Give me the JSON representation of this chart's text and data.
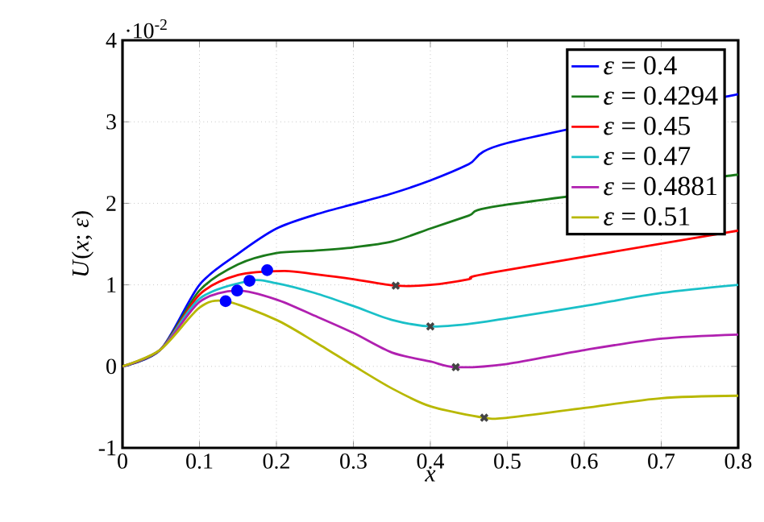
{
  "chart_data": {
    "type": "line",
    "xlabel": "*x*",
    "ylabel": "*U*(*x*; *ε*)",
    "annotations": [
      "·10$^{-2}$"
    ],
    "xlim": [
      0,
      0.8
    ],
    "ylim": [
      -1,
      4
    ],
    "xticks": [
      0,
      0.1,
      0.2,
      0.3,
      0.4,
      0.5,
      0.6,
      0.7,
      0.8
    ],
    "yticks": [
      -1,
      0,
      1,
      2,
      3,
      4
    ],
    "grid": true,
    "legend": "top right",
    "line_style": "solid",
    "marker": "none",
    "series": [
      {
        "name": "*ε* = 0.4",
        "color": "#0000ff",
        "x": [
          0,
          0.05,
          0.1,
          0.15,
          0.2,
          0.25,
          0.3,
          0.35,
          0.4,
          0.45,
          0.5,
          0.79,
          0.8
        ],
        "values": [
          0,
          0.21,
          1.0,
          1.38,
          1.69,
          1.86,
          1.99,
          2.12,
          2.28,
          2.48,
          2.74,
          3.32,
          3.33
        ]
      },
      {
        "name": "*ε* = 0.4294",
        "color": "#1a7a1a",
        "x": [
          0,
          0.05,
          0.1,
          0.15,
          0.2,
          0.25,
          0.3,
          0.35,
          0.4,
          0.45,
          0.49,
          0.79,
          0.8
        ],
        "values": [
          0,
          0.21,
          0.93,
          1.25,
          1.39,
          1.42,
          1.46,
          1.53,
          1.69,
          1.85,
          1.97,
          2.34,
          2.35
        ]
      },
      {
        "name": "*ε* = 0.45",
        "color": "#ff0000",
        "x": [
          0,
          0.05,
          0.1,
          0.15,
          0.21,
          0.25,
          0.3,
          0.355,
          0.4,
          0.45,
          0.48,
          0.79,
          0.8
        ],
        "values": [
          0,
          0.21,
          0.88,
          1.12,
          1.17,
          1.13,
          1.07,
          0.99,
          1.0,
          1.07,
          1.15,
          1.65,
          1.66
        ]
      },
      {
        "name": "*ε* = 0.47",
        "color": "#1ac0c8",
        "x": [
          0,
          0.05,
          0.1,
          0.165,
          0.2,
          0.25,
          0.3,
          0.35,
          0.4,
          0.45,
          0.5,
          0.6,
          0.7,
          0.8
        ],
        "values": [
          0,
          0.21,
          0.83,
          1.05,
          1.02,
          0.9,
          0.74,
          0.57,
          0.49,
          0.52,
          0.59,
          0.74,
          0.9,
          1.0
        ]
      },
      {
        "name": "*ε* = 0.4881",
        "color": "#b020b0",
        "x": [
          0,
          0.05,
          0.1,
          0.149,
          0.2,
          0.25,
          0.3,
          0.35,
          0.4,
          0.433,
          0.5,
          0.6,
          0.7,
          0.8
        ],
        "values": [
          0,
          0.21,
          0.79,
          0.93,
          0.82,
          0.62,
          0.41,
          0.17,
          0.06,
          -0.01,
          0.03,
          0.2,
          0.34,
          0.39
        ]
      },
      {
        "name": "*ε* = 0.51",
        "color": "#b8b800",
        "x": [
          0,
          0.05,
          0.1,
          0.134,
          0.2,
          0.25,
          0.3,
          0.35,
          0.4,
          0.47,
          0.5,
          0.6,
          0.7,
          0.8
        ],
        "values": [
          0,
          0.21,
          0.72,
          0.8,
          0.57,
          0.3,
          0.01,
          -0.27,
          -0.49,
          -0.63,
          -0.63,
          -0.51,
          -0.39,
          -0.36
        ]
      },
      {
        "type": "scatter",
        "marker": "circle",
        "color": "#0000ff",
        "x": [
          0.134,
          0.149,
          0.165,
          0.188
        ],
        "values": [
          0.8,
          0.93,
          1.05,
          1.18
        ]
      },
      {
        "type": "scatter",
        "marker": "cross",
        "color": "#444444",
        "x": [
          0.355,
          0.4,
          0.433,
          0.47
        ],
        "values": [
          0.99,
          0.49,
          -0.01,
          -0.63
        ]
      }
    ]
  }
}
